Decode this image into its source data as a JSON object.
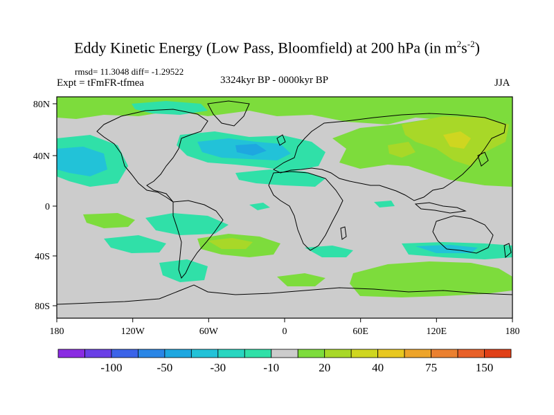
{
  "title_prefix": "Eddy Kinetic Energy (Low Pass, Bloomfield) at 200 hPa (in m",
  "title_sup1": "2",
  "title_mid": "s",
  "title_sup2": "-2",
  "title_suffix": ")",
  "stats": "rmsd= 11.3048 diff= -1.29522",
  "expt": "Expt = tFmFR-tfmea",
  "period": "3324kyr BP - 0000kyr BP",
  "season": "JJA",
  "lat_labels": [
    "80N",
    "40N",
    "0",
    "40S",
    "80S"
  ],
  "lon_labels": [
    "180",
    "120W",
    "60W",
    "0",
    "60E",
    "120E",
    "180"
  ],
  "colorbar": {
    "colors": [
      "#8a2be2",
      "#6a3fe6",
      "#3b63e8",
      "#2a86e6",
      "#1ea7e0",
      "#22c2d8",
      "#28d6c0",
      "#30e0a8",
      "#cccccc",
      "#7ddc3c",
      "#a8d828",
      "#cfd620",
      "#e8c820",
      "#eda42a",
      "#ea8030",
      "#e86028",
      "#e04018"
    ],
    "labels": [
      "-100",
      "-50",
      "-30",
      "-10",
      "20",
      "40",
      "75",
      "150"
    ],
    "label_after_box": [
      1,
      3,
      5,
      7,
      9,
      11,
      13,
      15
    ]
  },
  "palette": {
    "land_gray": "#cccccc",
    "blue_cyan": "#22c2d8",
    "teal": "#30e0a8",
    "green": "#7ddc3c",
    "yellow_green": "#a8d828",
    "olive": "#cfd620",
    "deep_blue": "#1ea7e0"
  }
}
